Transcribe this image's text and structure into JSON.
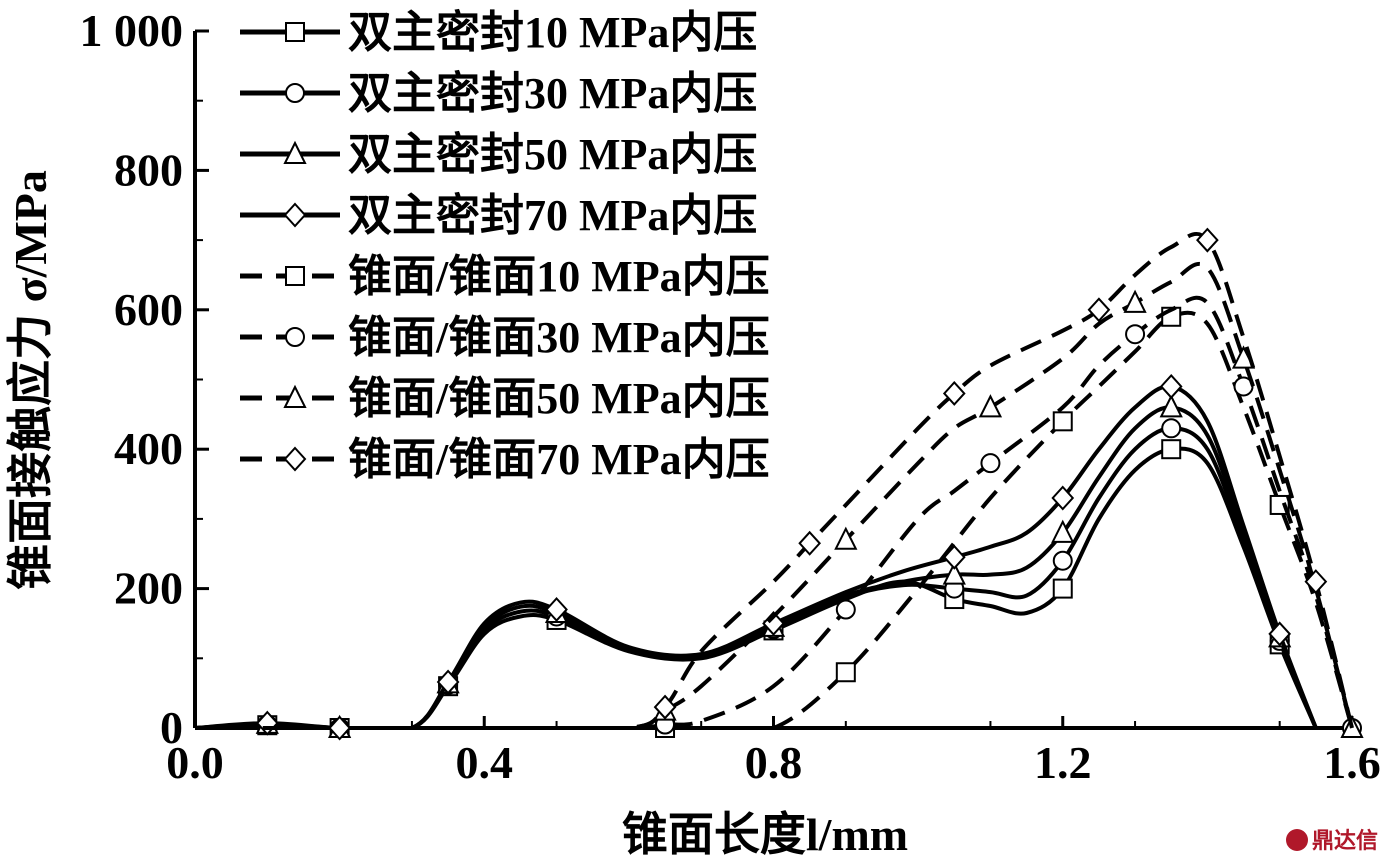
{
  "chart_data": {
    "type": "line",
    "title": "",
    "xlabel": "锥面长度l/mm",
    "ylabel": "锥面接触应力 σ/MPa",
    "xlim": [
      0.0,
      1.6
    ],
    "ylim": [
      0,
      1000
    ],
    "x_ticks": [
      "0.0",
      "0.4",
      "0.8",
      "1.2",
      "1.6"
    ],
    "y_ticks": [
      "0",
      "200",
      "400",
      "600",
      "800",
      "1 000"
    ],
    "grid": false,
    "legend_position": "top-left",
    "series": [
      {
        "name": "双主密封10 MPa内压",
        "style": "solid",
        "marker": "square",
        "x": [
          0.0,
          0.1,
          0.2,
          0.3,
          0.35,
          0.4,
          0.45,
          0.5,
          0.6,
          0.7,
          0.8,
          0.9,
          0.98,
          1.05,
          1.1,
          1.15,
          1.2,
          1.25,
          1.3,
          1.35,
          1.4,
          1.45,
          1.5,
          1.55
        ],
        "y": [
          0,
          4,
          0,
          0,
          60,
          135,
          160,
          155,
          110,
          100,
          140,
          185,
          210,
          185,
          175,
          165,
          200,
          300,
          370,
          400,
          380,
          260,
          120,
          0
        ]
      },
      {
        "name": "双主密封30 MPa内压",
        "style": "solid",
        "marker": "circle",
        "x": [
          0.0,
          0.1,
          0.2,
          0.3,
          0.35,
          0.4,
          0.45,
          0.5,
          0.6,
          0.7,
          0.8,
          0.9,
          0.98,
          1.05,
          1.1,
          1.15,
          1.2,
          1.25,
          1.3,
          1.35,
          1.4,
          1.45,
          1.5,
          1.55
        ],
        "y": [
          0,
          5,
          0,
          0,
          62,
          140,
          167,
          160,
          112,
          102,
          142,
          188,
          205,
          200,
          195,
          190,
          240,
          330,
          400,
          430,
          400,
          270,
          125,
          0
        ]
      },
      {
        "name": "双主密封50 MPa内压",
        "style": "solid",
        "marker": "triangle",
        "x": [
          0.0,
          0.1,
          0.2,
          0.3,
          0.35,
          0.4,
          0.45,
          0.5,
          0.6,
          0.7,
          0.8,
          0.9,
          0.98,
          1.05,
          1.1,
          1.15,
          1.2,
          1.25,
          1.3,
          1.35,
          1.4,
          1.45,
          1.5,
          1.55
        ],
        "y": [
          0,
          6,
          0,
          0,
          64,
          145,
          174,
          165,
          114,
          104,
          145,
          190,
          210,
          220,
          220,
          230,
          280,
          360,
          430,
          460,
          420,
          280,
          130,
          0
        ]
      },
      {
        "name": "双主密封70 MPa内压",
        "style": "solid",
        "marker": "diamond",
        "x": [
          0.0,
          0.1,
          0.2,
          0.3,
          0.35,
          0.4,
          0.45,
          0.5,
          0.6,
          0.7,
          0.8,
          0.9,
          0.98,
          1.05,
          1.1,
          1.15,
          1.2,
          1.25,
          1.3,
          1.35,
          1.4,
          1.45,
          1.5,
          1.55
        ],
        "y": [
          0,
          7,
          0,
          0,
          66,
          150,
          180,
          170,
          116,
          106,
          150,
          195,
          225,
          245,
          260,
          280,
          330,
          400,
          460,
          490,
          440,
          290,
          135,
          0
        ]
      },
      {
        "name": "锥面/锥面10 MPa内压",
        "style": "dashed",
        "marker": "square",
        "x": [
          0.0,
          0.2,
          0.4,
          0.6,
          0.65,
          0.7,
          0.8,
          0.9,
          1.0,
          1.1,
          1.2,
          1.25,
          1.3,
          1.35,
          1.4,
          1.45,
          1.5,
          1.55,
          1.6
        ],
        "y": [
          0,
          0,
          0,
          0,
          0,
          0,
          0,
          80,
          200,
          330,
          440,
          490,
          540,
          590,
          580,
          460,
          320,
          180,
          0
        ]
      },
      {
        "name": "锥面/锥面30 MPa内压",
        "style": "dashed",
        "marker": "circle",
        "x": [
          0.0,
          0.2,
          0.4,
          0.6,
          0.65,
          0.7,
          0.8,
          0.9,
          1.0,
          1.05,
          1.1,
          1.2,
          1.25,
          1.3,
          1.35,
          1.4,
          1.45,
          1.5,
          1.55,
          1.6
        ],
        "y": [
          0,
          0,
          0,
          0,
          5,
          10,
          60,
          170,
          300,
          340,
          380,
          460,
          520,
          565,
          600,
          610,
          490,
          340,
          190,
          0
        ]
      },
      {
        "name": "锥面/锥面50 MPa内压",
        "style": "dashed",
        "marker": "triangle",
        "x": [
          0.0,
          0.2,
          0.4,
          0.6,
          0.65,
          0.7,
          0.8,
          0.9,
          1.0,
          1.05,
          1.1,
          1.2,
          1.25,
          1.3,
          1.35,
          1.4,
          1.45,
          1.5,
          1.55,
          1.6
        ],
        "y": [
          0,
          0,
          0,
          0,
          25,
          60,
          160,
          270,
          380,
          430,
          460,
          530,
          580,
          610,
          640,
          660,
          530,
          370,
          200,
          0
        ]
      },
      {
        "name": "锥面/锥面70 MPa内压",
        "style": "dashed",
        "marker": "diamond",
        "x": [
          0.0,
          0.2,
          0.4,
          0.6,
          0.65,
          0.7,
          0.8,
          0.85,
          0.9,
          1.0,
          1.05,
          1.1,
          1.2,
          1.25,
          1.3,
          1.35,
          1.4,
          1.45,
          1.5,
          1.55,
          1.6
        ],
        "y": [
          0,
          0,
          0,
          0,
          30,
          110,
          210,
          265,
          320,
          430,
          480,
          520,
          570,
          600,
          650,
          690,
          700,
          560,
          390,
          210,
          0
        ]
      }
    ]
  },
  "watermark": {
    "text": "鼎达信",
    "color": "#b0182a"
  }
}
